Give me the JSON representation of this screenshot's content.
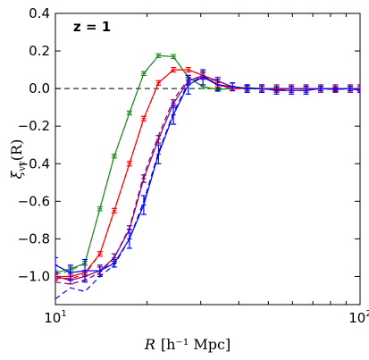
{
  "chart_data": {
    "type": "line",
    "annotation": "z = 1",
    "xlabel_var": "R",
    "xlabel_unit": "[h⁻¹ Mpc]",
    "ylabel_main": "ξ",
    "ylabel_sub": "vv",
    "ylabel_tail": "(R)",
    "xscale": "log",
    "xlim": [
      10,
      100
    ],
    "ylim": [
      -1.15,
      0.4
    ],
    "xticks": [
      {
        "v": 10,
        "base": "10",
        "exp": "1"
      },
      {
        "v": 100,
        "base": "10",
        "exp": "2"
      }
    ],
    "yticks": [
      {
        "v": 0.4,
        "label": "0.4"
      },
      {
        "v": 0.2,
        "label": "0.2"
      },
      {
        "v": 0.0,
        "label": "0.0"
      },
      {
        "v": -0.2,
        "label": "−0.2"
      },
      {
        "v": -0.4,
        "label": "−0.4"
      },
      {
        "v": -0.6,
        "label": "−0.6"
      },
      {
        "v": -0.8,
        "label": "−0.8"
      },
      {
        "v": -1.0,
        "label": "−1.0"
      }
    ],
    "reference_line": {
      "y": 0,
      "style": "dashed",
      "color": "#000000"
    },
    "series": [
      {
        "color": "#228b22",
        "x": [
          10,
          11.2,
          12.5,
          14,
          15.6,
          17.5,
          19.5,
          21.8,
          24.4,
          27.3,
          30.5,
          34.1,
          38.1,
          42.6,
          47.6,
          53.2,
          59.5,
          66.5,
          74.3,
          83,
          92.8,
          100
        ],
        "y": [
          -0.98,
          -0.96,
          -0.93,
          -0.64,
          -0.36,
          -0.13,
          0.08,
          0.175,
          0.17,
          0.06,
          0.01,
          -0.005,
          0.0,
          0.005,
          0.0,
          0.0,
          0.0,
          0.0,
          0.0,
          -0.005,
          0.0,
          0.0
        ],
        "err": [
          0.01,
          0.01,
          0.01,
          0.01,
          0.01,
          0.01,
          0.01,
          0.01,
          0.01,
          0.01,
          0.01,
          0.01,
          0.01,
          0.01,
          0.01,
          0.01,
          0.01,
          0.01,
          0.01,
          0.01,
          0.01,
          0.01
        ],
        "dashed_x": [
          10,
          11.2,
          12.5,
          14,
          15.6,
          17.5,
          19.5,
          21.8,
          24.4,
          27.3,
          30.5,
          34.1,
          38.1,
          42.6,
          47.6,
          53.2,
          59.5,
          66.5,
          74.3,
          83,
          92.8,
          100
        ],
        "dashed_y": [
          -0.99,
          -0.97,
          -0.93,
          -0.64,
          -0.36,
          -0.13,
          0.08,
          0.175,
          0.17,
          0.06,
          0.01,
          -0.005,
          0.0,
          0.005,
          0.0,
          0.0,
          0.0,
          0.0,
          0.0,
          -0.005,
          0.0,
          0.0
        ]
      },
      {
        "color": "#ff0000",
        "x": [
          10,
          11.2,
          12.5,
          14,
          15.6,
          17.5,
          19.5,
          21.8,
          24.4,
          27.3,
          30.5,
          34.1,
          38.1,
          42.6,
          47.6,
          53.2,
          59.5,
          66.5,
          74.3,
          83,
          92.8,
          100
        ],
        "y": [
          -1.0,
          -1.0,
          -0.98,
          -0.88,
          -0.65,
          -0.4,
          -0.16,
          0.03,
          0.1,
          0.1,
          0.07,
          0.02,
          0.0,
          0.0,
          0.0,
          -0.005,
          0.0,
          0.0,
          0.0,
          0.0,
          0.0,
          0.0
        ],
        "err": [
          0.012,
          0.012,
          0.012,
          0.012,
          0.012,
          0.012,
          0.012,
          0.012,
          0.012,
          0.012,
          0.012,
          0.012,
          0.012,
          0.012,
          0.012,
          0.012,
          0.012,
          0.012,
          0.012,
          0.012,
          0.012,
          0.012
        ],
        "dashed_x": [
          10,
          11.2,
          12.5,
          14,
          15.6,
          17.5,
          19.5,
          21.8,
          24.4,
          27.3,
          30.5,
          34.1,
          38.1,
          42.6,
          47.6,
          53.2,
          59.5,
          66.5,
          74.3,
          83,
          92.8,
          100
        ],
        "dashed_y": [
          -1.01,
          -1.01,
          -0.99,
          -0.88,
          -0.65,
          -0.4,
          -0.16,
          0.03,
          0.1,
          0.1,
          0.07,
          0.02,
          0.0,
          0.0,
          0.0,
          -0.005,
          0.0,
          0.0,
          0.0,
          0.0,
          0.0,
          0.0
        ]
      },
      {
        "color": "#800080",
        "x": [
          10,
          11.2,
          12.5,
          14,
          15.6,
          17.5,
          19.5,
          21.8,
          24.4,
          27.3,
          30.5,
          34.1,
          38.1,
          42.6,
          47.6,
          53.2,
          59.5,
          66.5,
          74.3,
          83,
          92.8,
          100
        ],
        "y": [
          -1.0,
          -1.02,
          -1.0,
          -0.97,
          -0.9,
          -0.75,
          -0.48,
          -0.27,
          -0.08,
          0.04,
          0.07,
          0.04,
          0.01,
          0.0,
          0.0,
          0.0,
          0.0,
          0.0,
          0.0,
          0.0,
          0.0,
          0.0
        ],
        "err": [
          0.02,
          0.02,
          0.02,
          0.02,
          0.02,
          0.02,
          0.02,
          0.02,
          0.02,
          0.02,
          0.02,
          0.02,
          0.02,
          0.02,
          0.02,
          0.02,
          0.02,
          0.02,
          0.02,
          0.02,
          0.02,
          0.02
        ],
        "dashed_x": [
          10,
          11.2,
          12.5,
          14,
          15.6,
          17.5,
          19.5,
          21.8,
          24.4,
          27.3,
          30.5,
          34.1,
          38.1,
          42.6,
          47.6,
          53.2,
          59.5,
          66.5,
          74.3,
          83,
          92.8,
          100
        ],
        "dashed_y": [
          -1.03,
          -1.04,
          -1.02,
          -0.98,
          -0.9,
          -0.74,
          -0.46,
          -0.25,
          -0.06,
          0.05,
          0.06,
          0.04,
          0.01,
          0.0,
          0.0,
          0.0,
          0.0,
          0.0,
          0.0,
          0.0,
          0.0,
          0.0
        ]
      },
      {
        "color": "#0000ff",
        "x": [
          10,
          11.2,
          12.5,
          14,
          15.6,
          17.5,
          19.5,
          21.8,
          24.4,
          27.3,
          30.5,
          34.1,
          38.1,
          42.6,
          47.6,
          53.2,
          59.5,
          66.5,
          74.3,
          83,
          92.8,
          100
        ],
        "y": [
          -0.94,
          -0.98,
          -0.97,
          -0.97,
          -0.93,
          -0.8,
          -0.62,
          -0.35,
          -0.14,
          0.02,
          0.06,
          0.02,
          0.01,
          0.0,
          0.0,
          -0.01,
          -0.01,
          -0.01,
          0.0,
          -0.005,
          0.0,
          -0.01
        ],
        "err": [
          0.04,
          0.04,
          0.06,
          0.03,
          0.02,
          0.05,
          0.05,
          0.05,
          0.05,
          0.05,
          0.04,
          0.03,
          0.02,
          0.02,
          0.02,
          0.02,
          0.02,
          0.02,
          0.01,
          0.01,
          0.01,
          0.01
        ],
        "dashed_x": [
          10,
          11.2,
          12.5,
          14,
          15.6,
          17.5,
          19.5,
          21.8,
          24.4,
          27.3,
          30.5,
          34.1,
          38.1,
          42.6,
          47.6,
          53.2,
          59.5,
          66.5,
          74.3,
          83,
          92.8,
          100
        ],
        "dashed_y": [
          -1.12,
          -1.06,
          -1.08,
          -1.0,
          -0.94,
          -0.8,
          -0.6,
          -0.34,
          -0.13,
          0.03,
          0.06,
          0.02,
          0.01,
          0.0,
          0.0,
          -0.01,
          -0.01,
          -0.01,
          0.0,
          -0.005,
          0.0,
          -0.01
        ]
      }
    ]
  }
}
